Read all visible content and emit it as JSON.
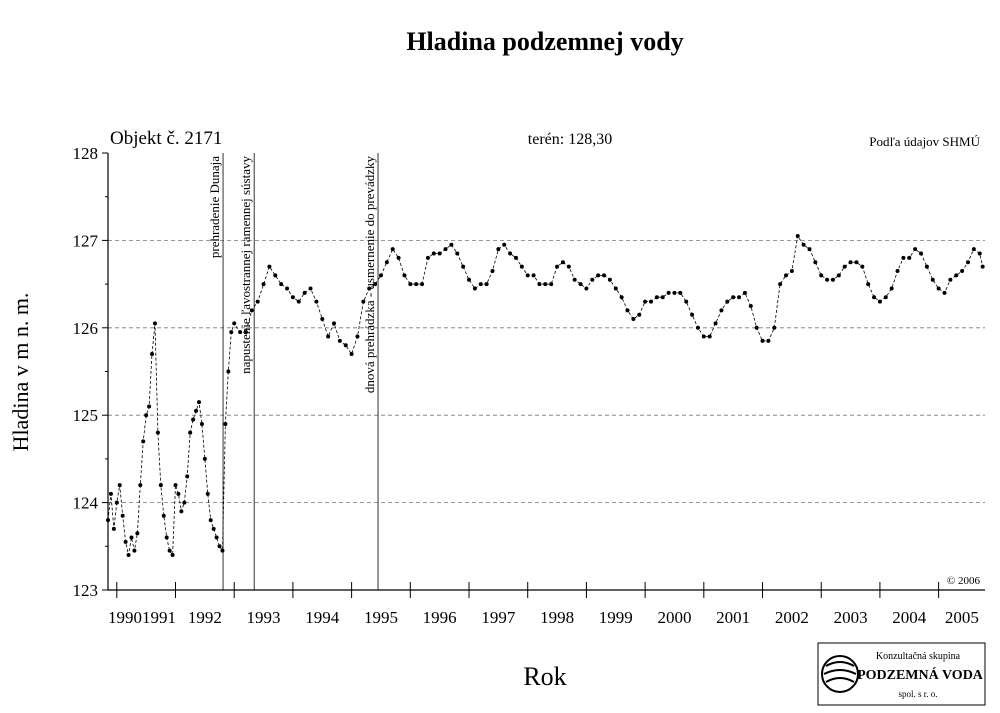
{
  "chart_data": {
    "type": "line",
    "title": "Hladina podzemnej vody",
    "object_label": "Objekt č. 2171",
    "terrain_label": "terén: 128,30",
    "source_label": "Podľa údajov SHMÚ",
    "copyright": "© 2006",
    "x_label": "Rok",
    "y_label": "Hladina v m n. m.",
    "color": "#000000",
    "xlim": [
      1990.85,
      2005.79
    ],
    "ylim": [
      123,
      128
    ],
    "yticks": [
      123,
      124,
      125,
      126,
      127,
      128
    ],
    "grid": true,
    "xticks": [
      {
        "value": 1990,
        "label": "1990"
      },
      {
        "value": 1991,
        "label": "1991"
      },
      {
        "value": 1992,
        "label": "1992"
      },
      {
        "value": 1993,
        "label": "1993"
      },
      {
        "value": 1994,
        "label": "1994"
      },
      {
        "value": 1995,
        "label": "1995"
      },
      {
        "value": 1996,
        "label": "1996"
      },
      {
        "value": 1997,
        "label": "1997"
      },
      {
        "value": 1998,
        "label": "1998"
      },
      {
        "value": 1999,
        "label": "1999"
      },
      {
        "value": 2000,
        "label": "2000"
      },
      {
        "value": 2001,
        "label": "2001"
      },
      {
        "value": 2002,
        "label": "2002"
      },
      {
        "value": 2003,
        "label": "2003"
      },
      {
        "value": 2004,
        "label": "2004"
      },
      {
        "value": 2005,
        "label": "2005"
      }
    ],
    "annotations": [
      {
        "x": 1992.81,
        "label": "prehradenie Dunaja"
      },
      {
        "x": 1993.34,
        "label": "napustenie ľavostrannej ramennej sústavy"
      },
      {
        "x": 1995.45,
        "label": "dnová prehrádzka - usmernenie do prevádzky"
      }
    ],
    "x": [
      1990.85,
      1990.9,
      1990.95,
      1991.0,
      1991.05,
      1991.1,
      1991.15,
      1991.2,
      1991.25,
      1991.3,
      1991.35,
      1991.4,
      1991.45,
      1991.5,
      1991.55,
      1991.6,
      1991.65,
      1991.7,
      1991.75,
      1991.8,
      1991.85,
      1991.9,
      1991.95,
      1992.0,
      1992.05,
      1992.1,
      1992.15,
      1992.2,
      1992.25,
      1992.3,
      1992.35,
      1992.4,
      1992.45,
      1992.5,
      1992.55,
      1992.6,
      1992.65,
      1992.7,
      1992.75,
      1992.8,
      1992.85,
      1992.9,
      1992.95,
      1993.0,
      1993.1,
      1993.2,
      1993.3,
      1993.4,
      1993.5,
      1993.6,
      1993.7,
      1993.8,
      1993.9,
      1994.0,
      1994.1,
      1994.2,
      1994.3,
      1994.4,
      1994.5,
      1994.6,
      1994.7,
      1994.8,
      1994.9,
      1995.0,
      1995.1,
      1995.2,
      1995.3,
      1995.4,
      1995.5,
      1995.6,
      1995.7,
      1995.8,
      1995.9,
      1996.0,
      1996.1,
      1996.2,
      1996.3,
      1996.4,
      1996.5,
      1996.6,
      1996.7,
      1996.8,
      1996.9,
      1997.0,
      1997.1,
      1997.2,
      1997.3,
      1997.4,
      1997.5,
      1997.6,
      1997.7,
      1997.8,
      1997.9,
      1998.0,
      1998.1,
      1998.2,
      1998.3,
      1998.4,
      1998.5,
      1998.6,
      1998.7,
      1998.8,
      1998.9,
      1999.0,
      1999.1,
      1999.2,
      1999.3,
      1999.4,
      1999.5,
      1999.6,
      1999.7,
      1999.8,
      1999.9,
      2000.0,
      2000.1,
      2000.2,
      2000.3,
      2000.4,
      2000.5,
      2000.6,
      2000.7,
      2000.8,
      2000.9,
      2001.0,
      2001.1,
      2001.2,
      2001.3,
      2001.4,
      2001.5,
      2001.6,
      2001.7,
      2001.8,
      2001.9,
      2002.0,
      2002.1,
      2002.2,
      2002.3,
      2002.4,
      2002.5,
      2002.6,
      2002.7,
      2002.8,
      2002.9,
      2003.0,
      2003.1,
      2003.2,
      2003.3,
      2003.4,
      2003.5,
      2003.6,
      2003.7,
      2003.8,
      2003.9,
      2004.0,
      2004.1,
      2004.2,
      2004.3,
      2004.4,
      2004.5,
      2004.6,
      2004.7,
      2004.8,
      2004.9,
      2005.0,
      2005.1,
      2005.2,
      2005.3,
      2005.4,
      2005.5,
      2005.6,
      2005.7,
      2005.75
    ],
    "values": [
      123.8,
      124.1,
      123.7,
      124.0,
      124.2,
      123.85,
      123.55,
      123.4,
      123.6,
      123.45,
      123.65,
      124.2,
      124.7,
      125.0,
      125.1,
      125.7,
      126.05,
      124.8,
      124.2,
      123.85,
      123.6,
      123.45,
      123.4,
      124.2,
      124.1,
      123.9,
      124.0,
      124.3,
      124.8,
      124.95,
      125.05,
      125.15,
      124.9,
      124.5,
      124.1,
      123.8,
      123.7,
      123.6,
      123.5,
      123.45,
      124.9,
      125.5,
      125.95,
      126.05,
      125.95,
      125.95,
      126.2,
      126.3,
      126.5,
      126.7,
      126.6,
      126.5,
      126.45,
      126.35,
      126.3,
      126.4,
      126.45,
      126.3,
      126.1,
      125.9,
      126.05,
      125.85,
      125.8,
      125.7,
      125.9,
      126.3,
      126.45,
      126.5,
      126.6,
      126.75,
      126.9,
      126.8,
      126.6,
      126.5,
      126.5,
      126.5,
      126.8,
      126.85,
      126.85,
      126.9,
      126.95,
      126.85,
      126.7,
      126.55,
      126.45,
      126.5,
      126.5,
      126.65,
      126.9,
      126.95,
      126.85,
      126.8,
      126.7,
      126.6,
      126.6,
      126.5,
      126.5,
      126.5,
      126.7,
      126.75,
      126.7,
      126.55,
      126.5,
      126.45,
      126.55,
      126.6,
      126.6,
      126.55,
      126.45,
      126.35,
      126.2,
      126.1,
      126.15,
      126.3,
      126.3,
      126.35,
      126.35,
      126.4,
      126.4,
      126.4,
      126.3,
      126.15,
      126.0,
      125.9,
      125.9,
      126.05,
      126.2,
      126.3,
      126.35,
      126.35,
      126.4,
      126.25,
      126.0,
      125.85,
      125.85,
      126.0,
      126.5,
      126.6,
      126.65,
      127.05,
      126.95,
      126.9,
      126.75,
      126.6,
      126.55,
      126.55,
      126.6,
      126.7,
      126.75,
      126.75,
      126.7,
      126.5,
      126.35,
      126.3,
      126.35,
      126.45,
      126.65,
      126.8,
      126.8,
      126.9,
      126.85,
      126.7,
      126.55,
      126.45,
      126.4,
      126.55,
      126.6,
      126.65,
      126.75,
      126.9,
      126.85,
      126.7
    ]
  },
  "logo": {
    "line1": "Konzultačná skupina",
    "line2": "PODZEMNÁ VODA",
    "line3": "spol. s r. o."
  }
}
